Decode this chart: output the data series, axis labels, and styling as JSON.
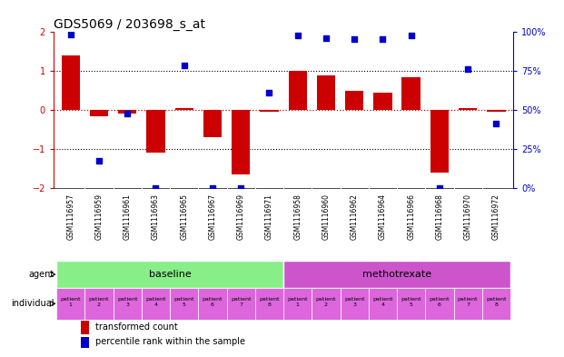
{
  "title": "GDS5069 / 203698_s_at",
  "samples": [
    "GSM1116957",
    "GSM1116959",
    "GSM1116961",
    "GSM1116963",
    "GSM1116965",
    "GSM1116967",
    "GSM1116969",
    "GSM1116971",
    "GSM1116958",
    "GSM1116960",
    "GSM1116962",
    "GSM1116964",
    "GSM1116966",
    "GSM1116968",
    "GSM1116970",
    "GSM1116972"
  ],
  "bar_values": [
    1.4,
    -0.15,
    -0.1,
    -1.1,
    0.05,
    -0.7,
    -1.65,
    -0.05,
    1.0,
    0.9,
    0.5,
    0.45,
    0.85,
    -1.6,
    0.05,
    -0.05
  ],
  "scatter_values": [
    1.95,
    -1.3,
    -0.1,
    -2.0,
    1.15,
    -2.0,
    -2.0,
    0.45,
    1.92,
    1.85,
    1.82,
    1.82,
    1.92,
    -2.0,
    1.05,
    -0.35
  ],
  "ylim": [
    -2,
    2
  ],
  "yticks_left": [
    -2,
    -1,
    0,
    1,
    2
  ],
  "right_ticks_pos": [
    -2,
    -1,
    0,
    1,
    2
  ],
  "right_ticks_labels": [
    "0%",
    "25%",
    "50%",
    "75%",
    "100%"
  ],
  "bar_color": "#cc0000",
  "scatter_color": "#0000cc",
  "background_color": "#ffffff",
  "sample_label_bg": "#cccccc",
  "agent_groups": [
    {
      "label": "baseline",
      "start": 0,
      "end": 8,
      "color": "#88ee88"
    },
    {
      "label": "methotrexate",
      "start": 8,
      "end": 16,
      "color": "#cc55cc"
    }
  ],
  "individual_color": "#dd66dd",
  "individual_labels": [
    "patient\n1",
    "patient\n2",
    "patient\n3",
    "patient\n4",
    "patient\n5",
    "patient\n6",
    "patient\n7",
    "patient\n8",
    "patient\n1",
    "patient\n2",
    "patient\n3",
    "patient\n4",
    "patient\n5",
    "patient\n6",
    "patient\n7",
    "patient\n8"
  ],
  "label_agent": "agent",
  "label_individual": "individual",
  "legend_bar_label": "transformed count",
  "legend_scatter_label": "percentile rank within the sample",
  "title_fontsize": 10,
  "tick_fontsize": 7,
  "sample_fontsize": 5.5,
  "agent_fontsize": 8,
  "indiv_fontsize": 4.5,
  "legend_fontsize": 7
}
